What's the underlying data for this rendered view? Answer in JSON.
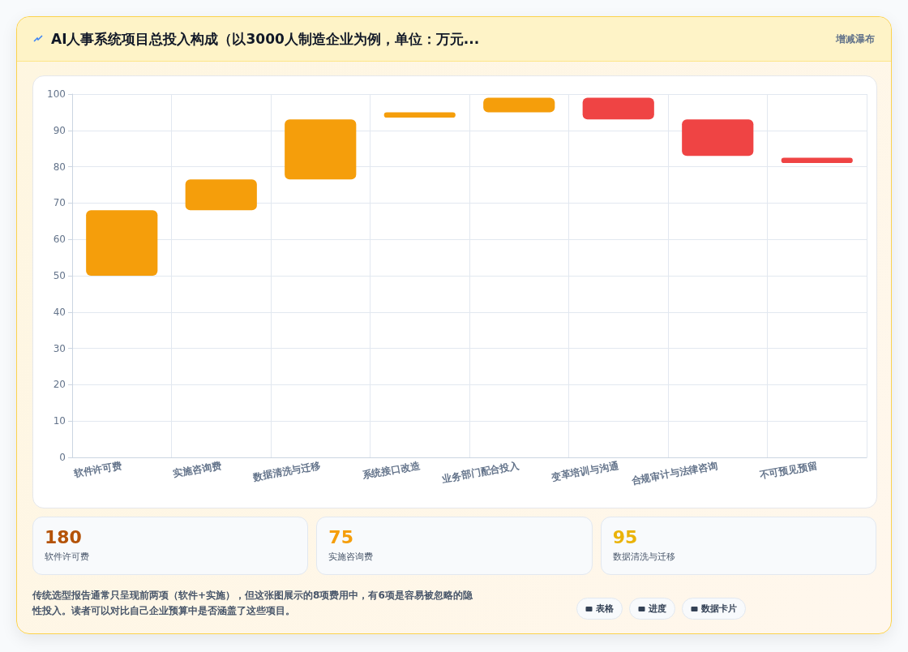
{
  "chart_data": {
    "type": "bar",
    "title": "AI人事系统项目总投入构成（以3000人制造企业为例，单位：万元...",
    "subtitle": "增减瀑布",
    "categories": [
      "软件许可费",
      "实施咨询费",
      "数据清洗与迁移",
      "系统接口改造",
      "业务部门配合投入",
      "变革培训与沟通",
      "合规审计与法律咨询",
      "不可预见预留"
    ],
    "base": [
      50,
      68,
      76.5,
      93.5,
      95,
      93,
      83,
      81
    ],
    "values": [
      18,
      8.5,
      16.5,
      1.5,
      4,
      6,
      10,
      1.5
    ],
    "colors": [
      "#f59e0b",
      "#f59e0b",
      "#f59e0b",
      "#f59e0b",
      "#f59e0b",
      "#ef4444",
      "#ef4444",
      "#ef4444"
    ],
    "ylim": [
      0,
      100
    ],
    "yticks": [
      0,
      10,
      20,
      30,
      40,
      50,
      60,
      70,
      80,
      90,
      100
    ],
    "grid": true,
    "annotations": [
      "180",
      "软件许可费",
      "75",
      "实施咨询费",
      "95",
      "数据清洗与迁移",
      "传统选型报告通常只呈现前两项（软件+实施），但这张图展示的8项费用中，有6项是容易被忽略的隐性投入。读者可以对比自己企业预算中是否涵盖了这些项目。",
      "表格",
      "进度",
      "数据卡片"
    ]
  }
}
